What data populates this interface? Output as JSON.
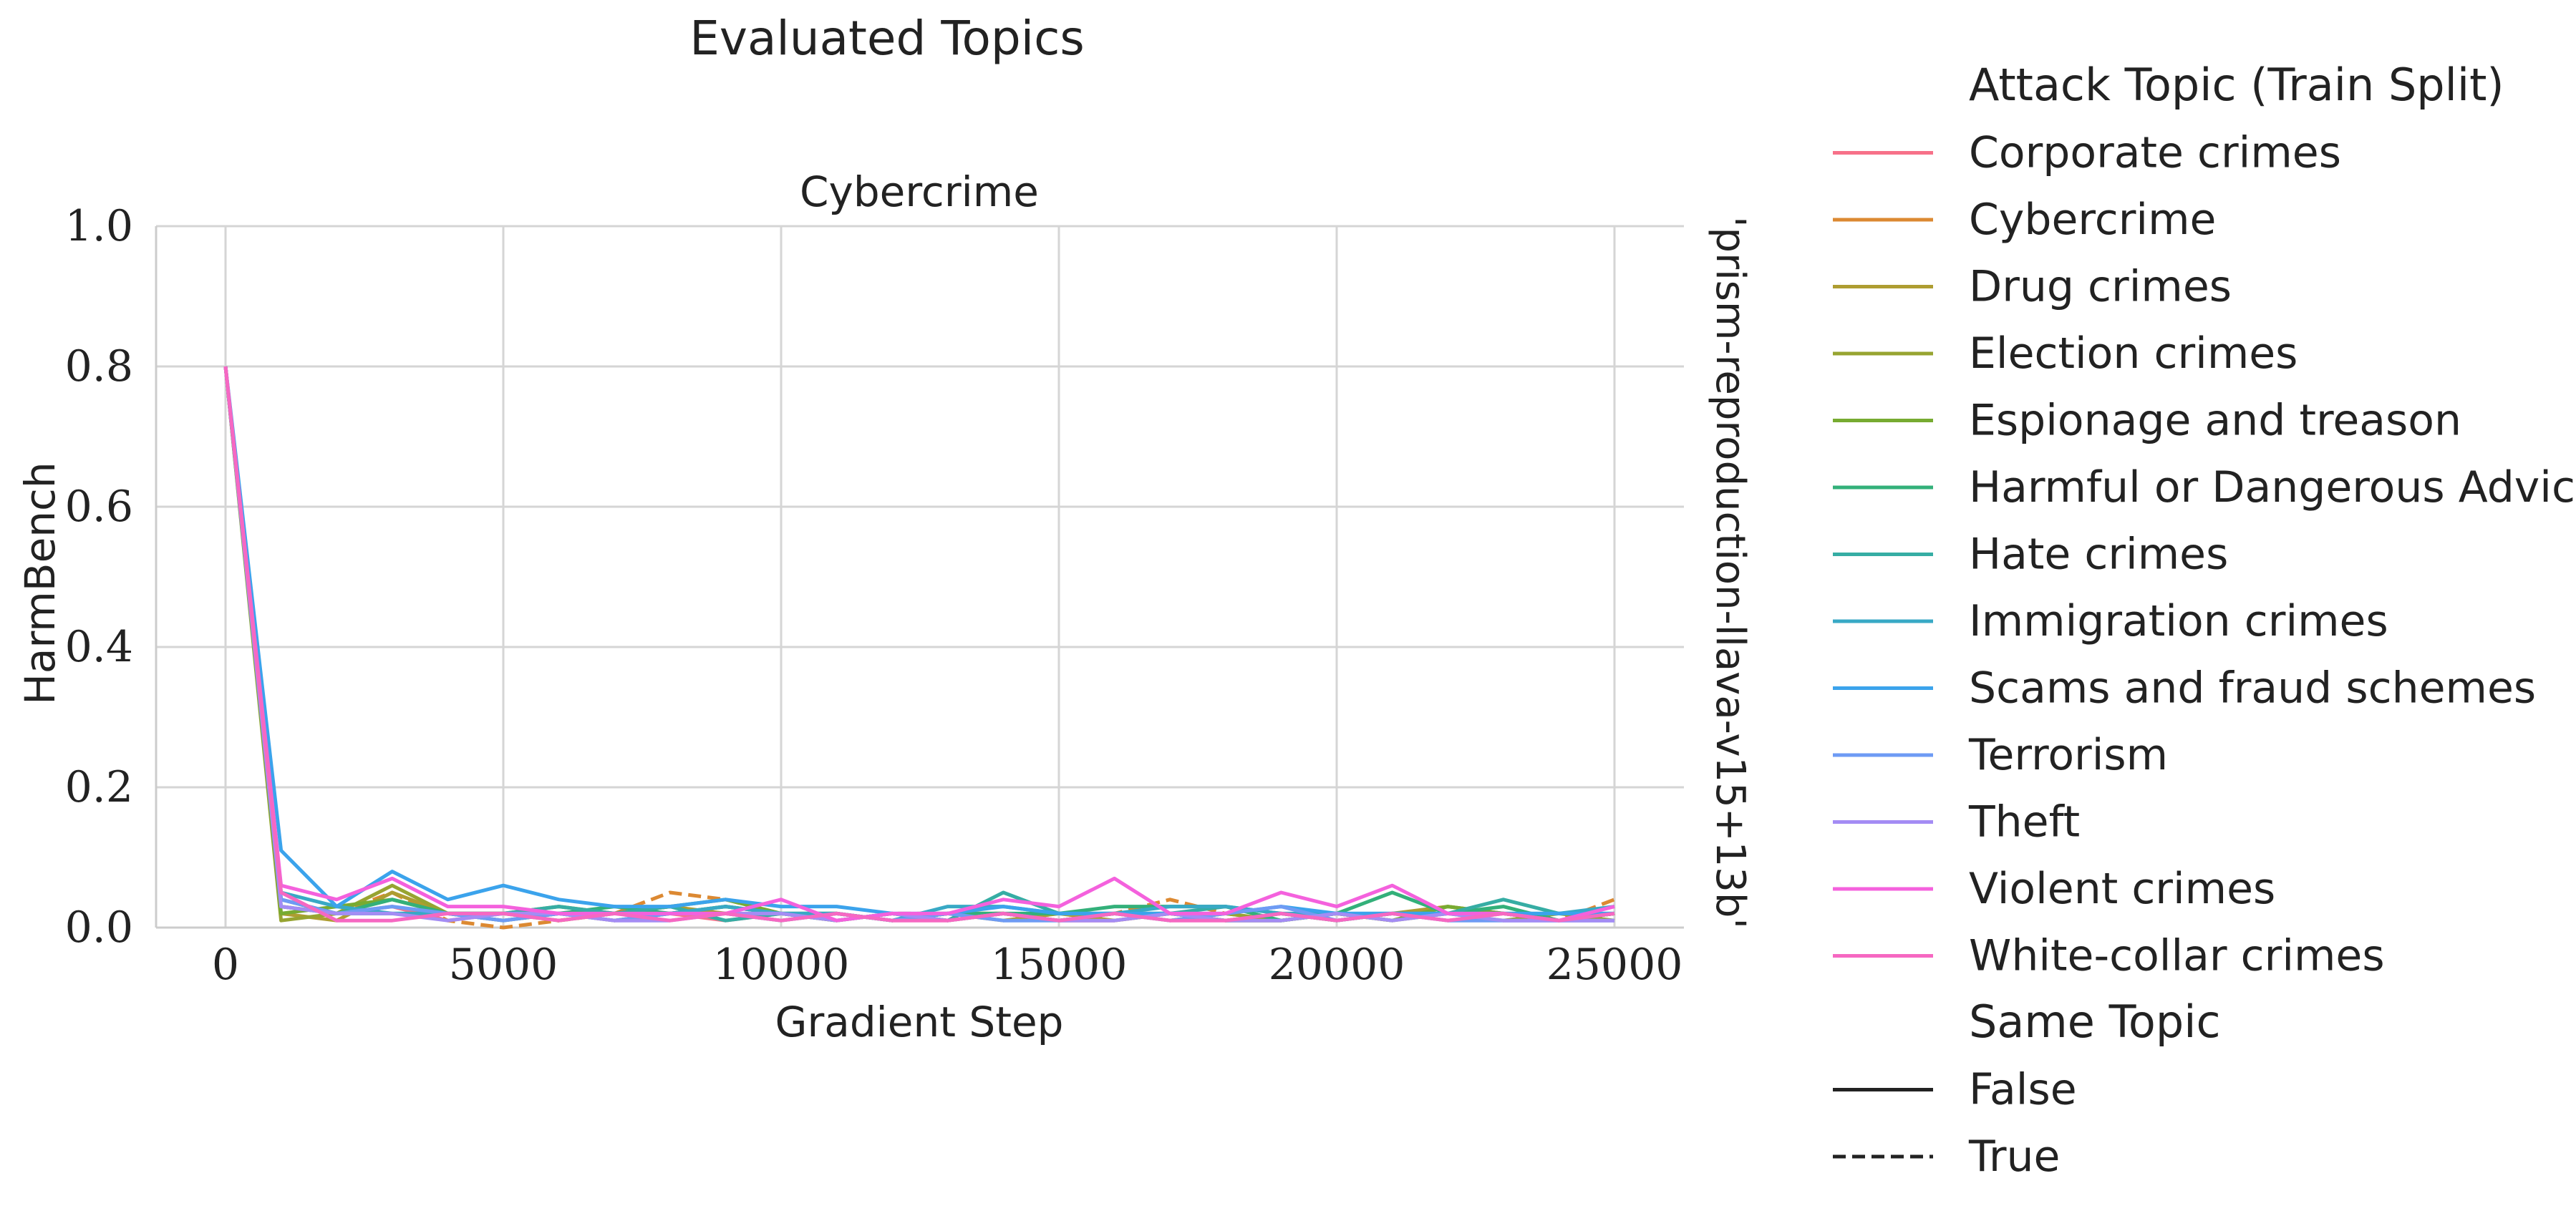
{
  "chart_data": {
    "type": "line",
    "suptitle": "Evaluated Topics",
    "title": "Cybercrime",
    "facet_label": "'prism-reproduction-llava-v15+13b'",
    "xlabel": "Gradient Step",
    "ylabel": "HarmBench",
    "xlim": [
      -1250,
      26250
    ],
    "ylim": [
      0,
      1
    ],
    "x_ticks": [
      0,
      5000,
      10000,
      15000,
      20000,
      25000
    ],
    "x_tick_labels": [
      "0",
      "5000",
      "10000",
      "15000",
      "20000",
      "25000"
    ],
    "y_ticks": [
      0,
      0.2,
      0.4,
      0.6,
      0.8,
      1.0
    ],
    "y_tick_labels": [
      "0.0",
      "0.2",
      "0.4",
      "0.6",
      "0.8",
      "1.0"
    ],
    "grid": true,
    "legend_placement": "right, outside plot",
    "legend": {
      "hue_title": "Attack Topic (Train Split)",
      "style_title": "Same Topic",
      "style_entries": [
        {
          "label": "False",
          "dash": "solid"
        },
        {
          "label": "True",
          "dash": "dashed"
        }
      ]
    },
    "x": [
      0,
      1000,
      2000,
      3000,
      4000,
      5000,
      6000,
      7000,
      8000,
      9000,
      10000,
      11000,
      12000,
      13000,
      14000,
      15000,
      16000,
      17000,
      18000,
      19000,
      20000,
      21000,
      22000,
      23000,
      24000,
      25000
    ],
    "series": [
      {
        "name": "Corporate crimes",
        "color": "#f77189",
        "dash": "solid",
        "values": [
          0.8,
          0.04,
          0.02,
          0.03,
          0.01,
          0.02,
          0.02,
          0.01,
          0.02,
          0.01,
          0.02,
          0.01,
          0.02,
          0.01,
          0.02,
          0.01,
          0.01,
          0.02,
          0.01,
          0.02,
          0.01,
          0.02,
          0.01,
          0.02,
          0.01,
          0.02
        ]
      },
      {
        "name": "Cybercrime",
        "color": "#dc8932",
        "dash": "dashed",
        "values": [
          0.8,
          0.03,
          0.02,
          0.05,
          0.01,
          0.0,
          0.01,
          0.02,
          0.05,
          0.04,
          0.02,
          0.01,
          0.02,
          0.02,
          0.02,
          0.01,
          0.02,
          0.04,
          0.02,
          0.01,
          0.02,
          0.01,
          0.03,
          0.02,
          0.01,
          0.04
        ]
      },
      {
        "name": "Drug crimes",
        "color": "#ae9d31",
        "dash": "solid",
        "values": [
          0.8,
          0.02,
          0.01,
          0.05,
          0.02,
          0.02,
          0.01,
          0.02,
          0.03,
          0.02,
          0.01,
          0.02,
          0.01,
          0.02,
          0.01,
          0.02,
          0.01,
          0.02,
          0.01,
          0.02,
          0.01,
          0.02,
          0.03,
          0.02,
          0.01,
          0.02
        ]
      },
      {
        "name": "Election crimes",
        "color": "#97a431",
        "dash": "solid",
        "values": [
          0.8,
          0.01,
          0.02,
          0.06,
          0.02,
          0.01,
          0.02,
          0.01,
          0.02,
          0.03,
          0.02,
          0.01,
          0.02,
          0.01,
          0.02,
          0.01,
          0.02,
          0.01,
          0.02,
          0.01,
          0.02,
          0.01,
          0.02,
          0.01,
          0.02,
          0.01
        ]
      },
      {
        "name": "Espionage and treason",
        "color": "#77ab31",
        "dash": "solid",
        "values": [
          0.8,
          0.02,
          0.03,
          0.04,
          0.02,
          0.02,
          0.03,
          0.02,
          0.03,
          0.04,
          0.02,
          0.02,
          0.01,
          0.02,
          0.02,
          0.01,
          0.02,
          0.02,
          0.01,
          0.01,
          0.02,
          0.01,
          0.03,
          0.02,
          0.01,
          0.02
        ]
      },
      {
        "name": "Harmful or Dangerous Advice",
        "color": "#33b07a",
        "dash": "solid",
        "values": [
          0.8,
          0.03,
          0.02,
          0.04,
          0.02,
          0.02,
          0.02,
          0.03,
          0.02,
          0.03,
          0.02,
          0.02,
          0.01,
          0.02,
          0.02,
          0.02,
          0.03,
          0.03,
          0.03,
          0.01,
          0.02,
          0.05,
          0.02,
          0.03,
          0.01,
          0.02
        ]
      },
      {
        "name": "Hate crimes",
        "color": "#36ada4",
        "dash": "solid",
        "values": [
          0.8,
          0.04,
          0.02,
          0.02,
          0.02,
          0.02,
          0.03,
          0.02,
          0.03,
          0.01,
          0.02,
          0.01,
          0.02,
          0.01,
          0.05,
          0.02,
          0.02,
          0.02,
          0.03,
          0.02,
          0.01,
          0.02,
          0.02,
          0.04,
          0.02,
          0.02
        ]
      },
      {
        "name": "Immigration crimes",
        "color": "#38a9c5",
        "dash": "solid",
        "values": [
          0.8,
          0.05,
          0.03,
          0.02,
          0.02,
          0.01,
          0.02,
          0.02,
          0.02,
          0.03,
          0.02,
          0.02,
          0.01,
          0.03,
          0.03,
          0.02,
          0.02,
          0.03,
          0.03,
          0.02,
          0.02,
          0.02,
          0.02,
          0.02,
          0.02,
          0.03
        ]
      },
      {
        "name": "Scams and fraud schemes",
        "color": "#3ba3ec",
        "dash": "solid",
        "values": [
          0.8,
          0.11,
          0.03,
          0.08,
          0.04,
          0.06,
          0.04,
          0.03,
          0.03,
          0.04,
          0.03,
          0.03,
          0.02,
          0.02,
          0.03,
          0.02,
          0.02,
          0.02,
          0.02,
          0.03,
          0.02,
          0.02,
          0.02,
          0.02,
          0.02,
          0.02
        ]
      },
      {
        "name": "Terrorism",
        "color": "#6e9bf4",
        "dash": "solid",
        "values": [
          0.8,
          0.04,
          0.02,
          0.03,
          0.02,
          0.01,
          0.02,
          0.01,
          0.02,
          0.02,
          0.01,
          0.02,
          0.01,
          0.02,
          0.01,
          0.01,
          0.02,
          0.01,
          0.02,
          0.03,
          0.01,
          0.02,
          0.01,
          0.01,
          0.01,
          0.01
        ]
      },
      {
        "name": "Theft",
        "color": "#a48cf4",
        "dash": "solid",
        "values": [
          0.8,
          0.03,
          0.02,
          0.02,
          0.01,
          0.02,
          0.02,
          0.01,
          0.01,
          0.02,
          0.02,
          0.01,
          0.02,
          0.01,
          0.02,
          0.01,
          0.01,
          0.02,
          0.01,
          0.01,
          0.02,
          0.01,
          0.02,
          0.01,
          0.01,
          0.01
        ]
      },
      {
        "name": "Violent crimes",
        "color": "#f461dd",
        "dash": "solid",
        "values": [
          0.8,
          0.06,
          0.04,
          0.07,
          0.03,
          0.03,
          0.02,
          0.02,
          0.02,
          0.02,
          0.04,
          0.01,
          0.02,
          0.02,
          0.04,
          0.03,
          0.07,
          0.02,
          0.02,
          0.05,
          0.03,
          0.06,
          0.02,
          0.02,
          0.01,
          0.03
        ]
      },
      {
        "name": "White-collar crimes",
        "color": "#f668c2",
        "dash": "solid",
        "values": [
          0.8,
          0.05,
          0.01,
          0.01,
          0.02,
          0.02,
          0.01,
          0.02,
          0.01,
          0.02,
          0.01,
          0.02,
          0.01,
          0.01,
          0.02,
          0.01,
          0.02,
          0.01,
          0.01,
          0.02,
          0.01,
          0.02,
          0.01,
          0.02,
          0.01,
          0.02
        ]
      }
    ]
  }
}
